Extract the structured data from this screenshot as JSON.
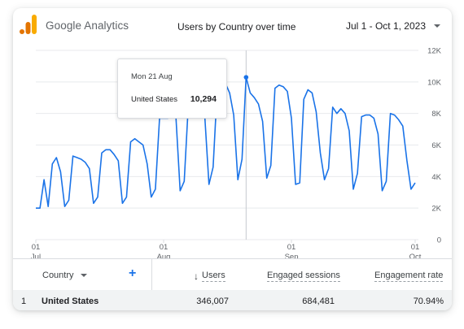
{
  "header": {
    "brand": "Google Analytics",
    "title": "Users by Country over time",
    "date_range": "Jul 1 - Oct 1, 2023"
  },
  "colors": {
    "line": "#1a73e8",
    "grid": "#e8eaed",
    "logo_orange": "#f9ab00",
    "logo_dark_orange": "#e37400"
  },
  "tooltip": {
    "date": "Mon 21 Aug",
    "country": "United States",
    "value": "10,294"
  },
  "chart_data": {
    "type": "line",
    "y_ticks": [
      "0",
      "2K",
      "4K",
      "6K",
      "8K",
      "10K",
      "12K"
    ],
    "ylim": [
      0,
      12000
    ],
    "x_ticks": [
      {
        "day": "01",
        "month": "Jul",
        "index": 0
      },
      {
        "day": "01",
        "month": "Aug",
        "index": 31
      },
      {
        "day": "01",
        "month": "Sep",
        "index": 62
      },
      {
        "day": "01",
        "month": "Oct",
        "index": 92
      }
    ],
    "highlight_index": 51,
    "series": [
      {
        "values": [
          2000,
          2000,
          3800,
          2100,
          4800,
          5200,
          4300,
          2100,
          2500,
          5300,
          5200,
          5100,
          4900,
          4500,
          2300,
          2700,
          5500,
          5700,
          5700,
          5400,
          5000,
          2300,
          2700,
          6200,
          6400,
          6200,
          6000,
          4800,
          2700,
          3200,
          7700,
          7700,
          7700,
          8300,
          7700,
          3100,
          3700,
          8600,
          8800,
          8800,
          8500,
          7700,
          3500,
          4600,
          9600,
          10000,
          9900,
          9300,
          7900,
          3800,
          5100,
          10294,
          9300,
          9000,
          8600,
          7500,
          3900,
          4700,
          9600,
          9800,
          9700,
          9400,
          7700,
          3500,
          3600,
          8900,
          9500,
          9300,
          8100,
          5500,
          3800,
          4500,
          8400,
          8000,
          8300,
          8000,
          6900,
          3200,
          4200,
          7800,
          7900,
          7900,
          7700,
          6700,
          3100,
          3700,
          8000,
          7900,
          7600,
          7200,
          5000,
          3200,
          3600
        ]
      }
    ]
  },
  "table": {
    "headers": {
      "country": "Country",
      "add": "+",
      "sort_icon": "↓",
      "users": "Users",
      "sessions": "Engaged sessions",
      "rate": "Engagement rate"
    },
    "rows": [
      {
        "index": "1",
        "country": "United States",
        "users": "346,007",
        "sessions": "684,481",
        "rate": "70.94%"
      }
    ]
  }
}
